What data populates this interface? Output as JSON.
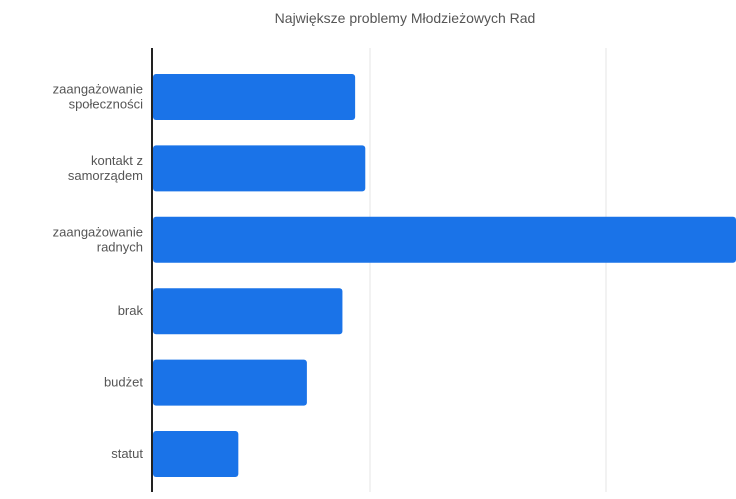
{
  "chart_data": {
    "type": "bar",
    "orientation": "horizontal",
    "title": "Największe problemy Młodzieżowych Rad",
    "xlabel": "",
    "ylabel": "",
    "categories": [
      [
        "zaangażowanie",
        "społeczności"
      ],
      [
        "kontakt z",
        "samorządem"
      ],
      [
        "zaangażowanie",
        "radnych"
      ],
      [
        "brak"
      ],
      [
        "budżet"
      ],
      [
        "statut"
      ]
    ],
    "values": [
      8.0,
      8.4,
      23.0,
      7.5,
      6.1,
      3.4
    ],
    "xlim": [
      0,
      23
    ],
    "grid": true,
    "bar_color": "#1a73e8"
  }
}
